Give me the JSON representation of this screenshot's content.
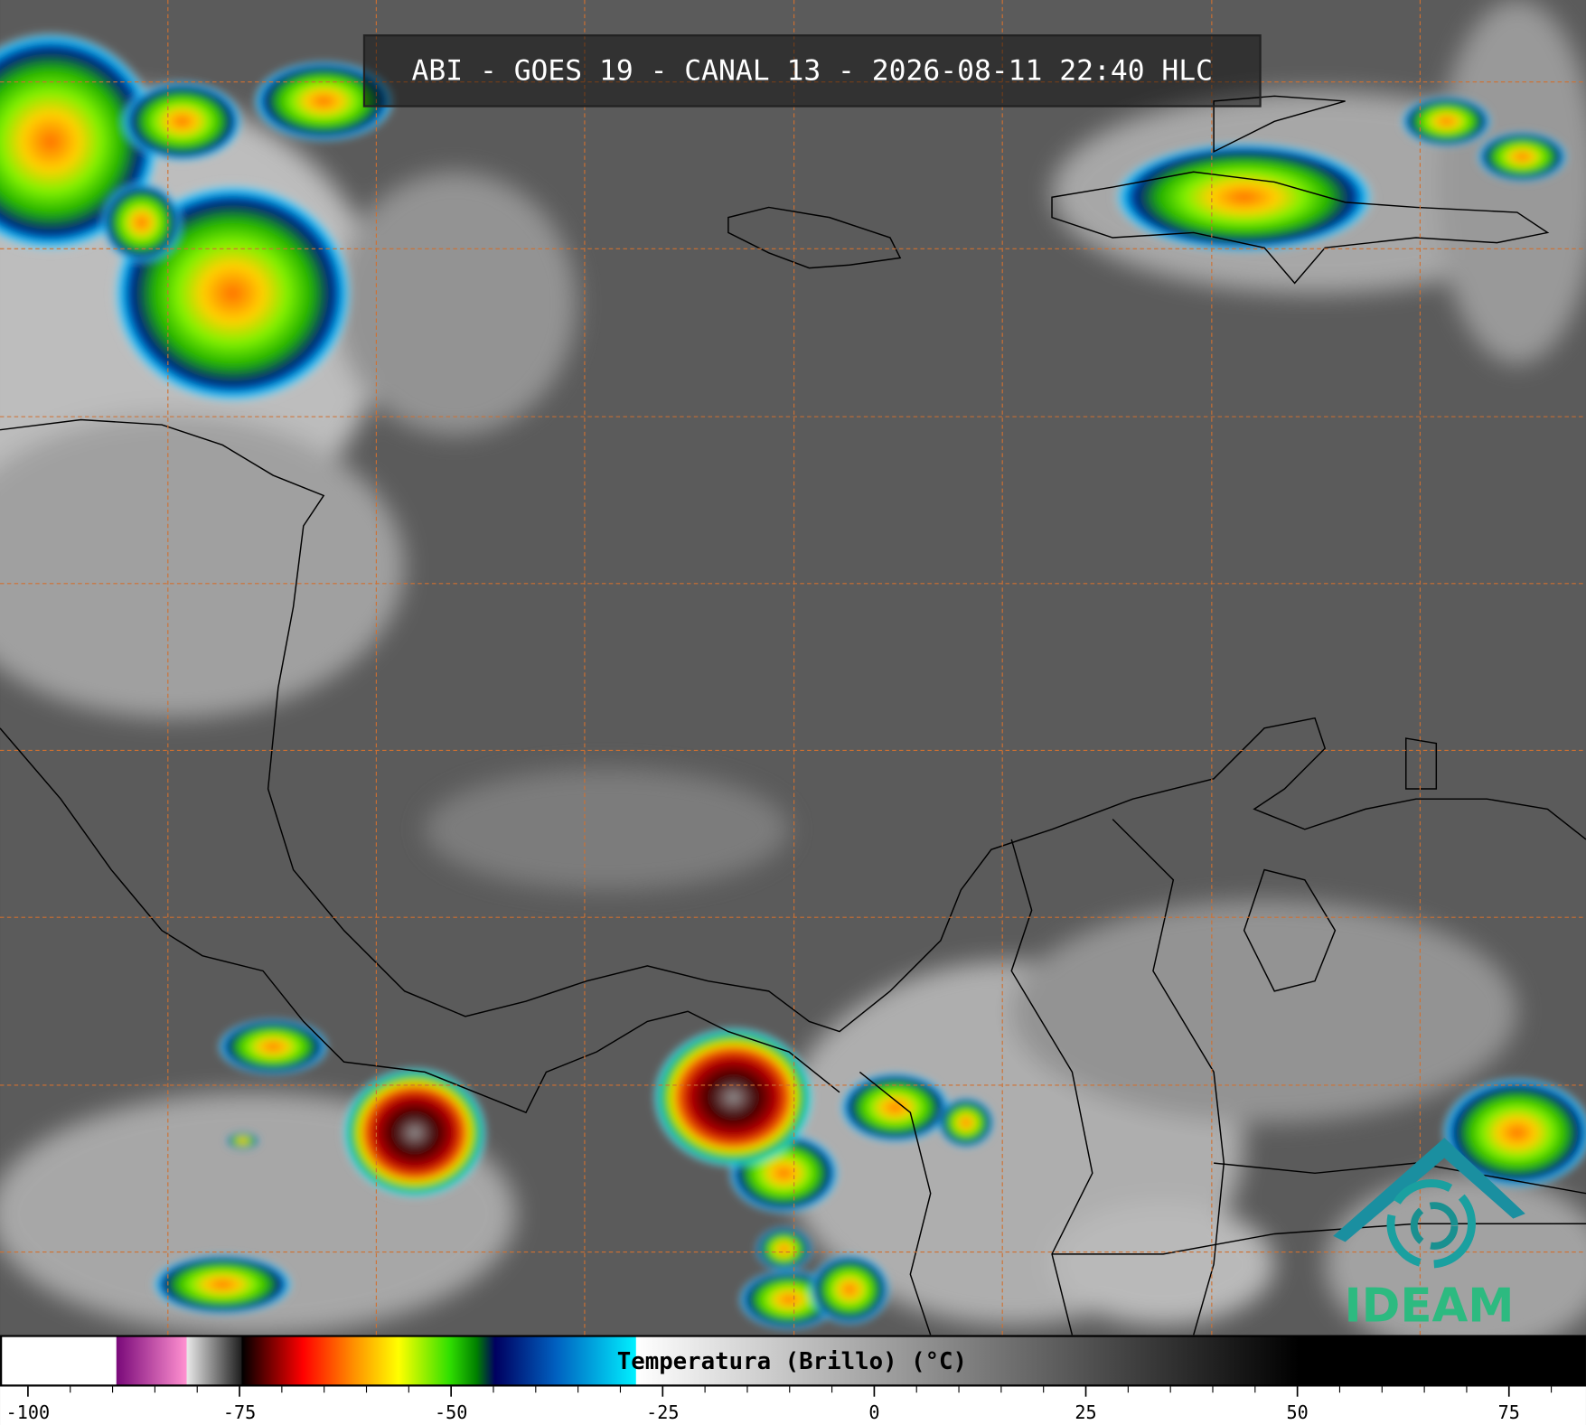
{
  "title": "ABI - GOES 19 - CANAL 13 - 2026-08-11 22:40 HLC",
  "logo": "IDEAM",
  "colorbar": {
    "label": "Temperatura (Brillo) (°C)",
    "lim": [
      -103.3,
      84.1
    ],
    "ticks": [
      -100,
      -75,
      -50,
      -25,
      0,
      25,
      50,
      75
    ],
    "minor_ticks": [
      -95,
      -90,
      -85,
      -80,
      -70,
      -65,
      -60,
      -55,
      -45,
      -40,
      -35,
      -30,
      -20,
      -15,
      -10,
      -5,
      5,
      10,
      15,
      20,
      30,
      35,
      40,
      45,
      55,
      60,
      65,
      70,
      80
    ],
    "stops": [
      {
        "value": -103.3,
        "color": "#ffffff"
      },
      {
        "value": -89.6,
        "color": "#ffffff"
      },
      {
        "value": -89.5,
        "color": "#7a0a7a"
      },
      {
        "value": -81.3,
        "color": "#ff90d0"
      },
      {
        "value": -81.2,
        "color": "#e8e8e8"
      },
      {
        "value": -74.8,
        "color": "#202020"
      },
      {
        "value": -74.7,
        "color": "#000000"
      },
      {
        "value": -72,
        "color": "#600000"
      },
      {
        "value": -67.5,
        "color": "#ff0000"
      },
      {
        "value": -61.5,
        "color": "#ff9000"
      },
      {
        "value": -56.2,
        "color": "#ffff00"
      },
      {
        "value": -50.2,
        "color": "#30e000"
      },
      {
        "value": -47,
        "color": "#008000"
      },
      {
        "value": -44.8,
        "color": "#000060"
      },
      {
        "value": -37.6,
        "color": "#0060c0"
      },
      {
        "value": -28.2,
        "color": "#00f0ff"
      },
      {
        "value": -28.1,
        "color": "#ffffff"
      },
      {
        "value": 50.2,
        "color": "#000000"
      },
      {
        "value": 84.1,
        "color": "#000000"
      }
    ]
  }
}
